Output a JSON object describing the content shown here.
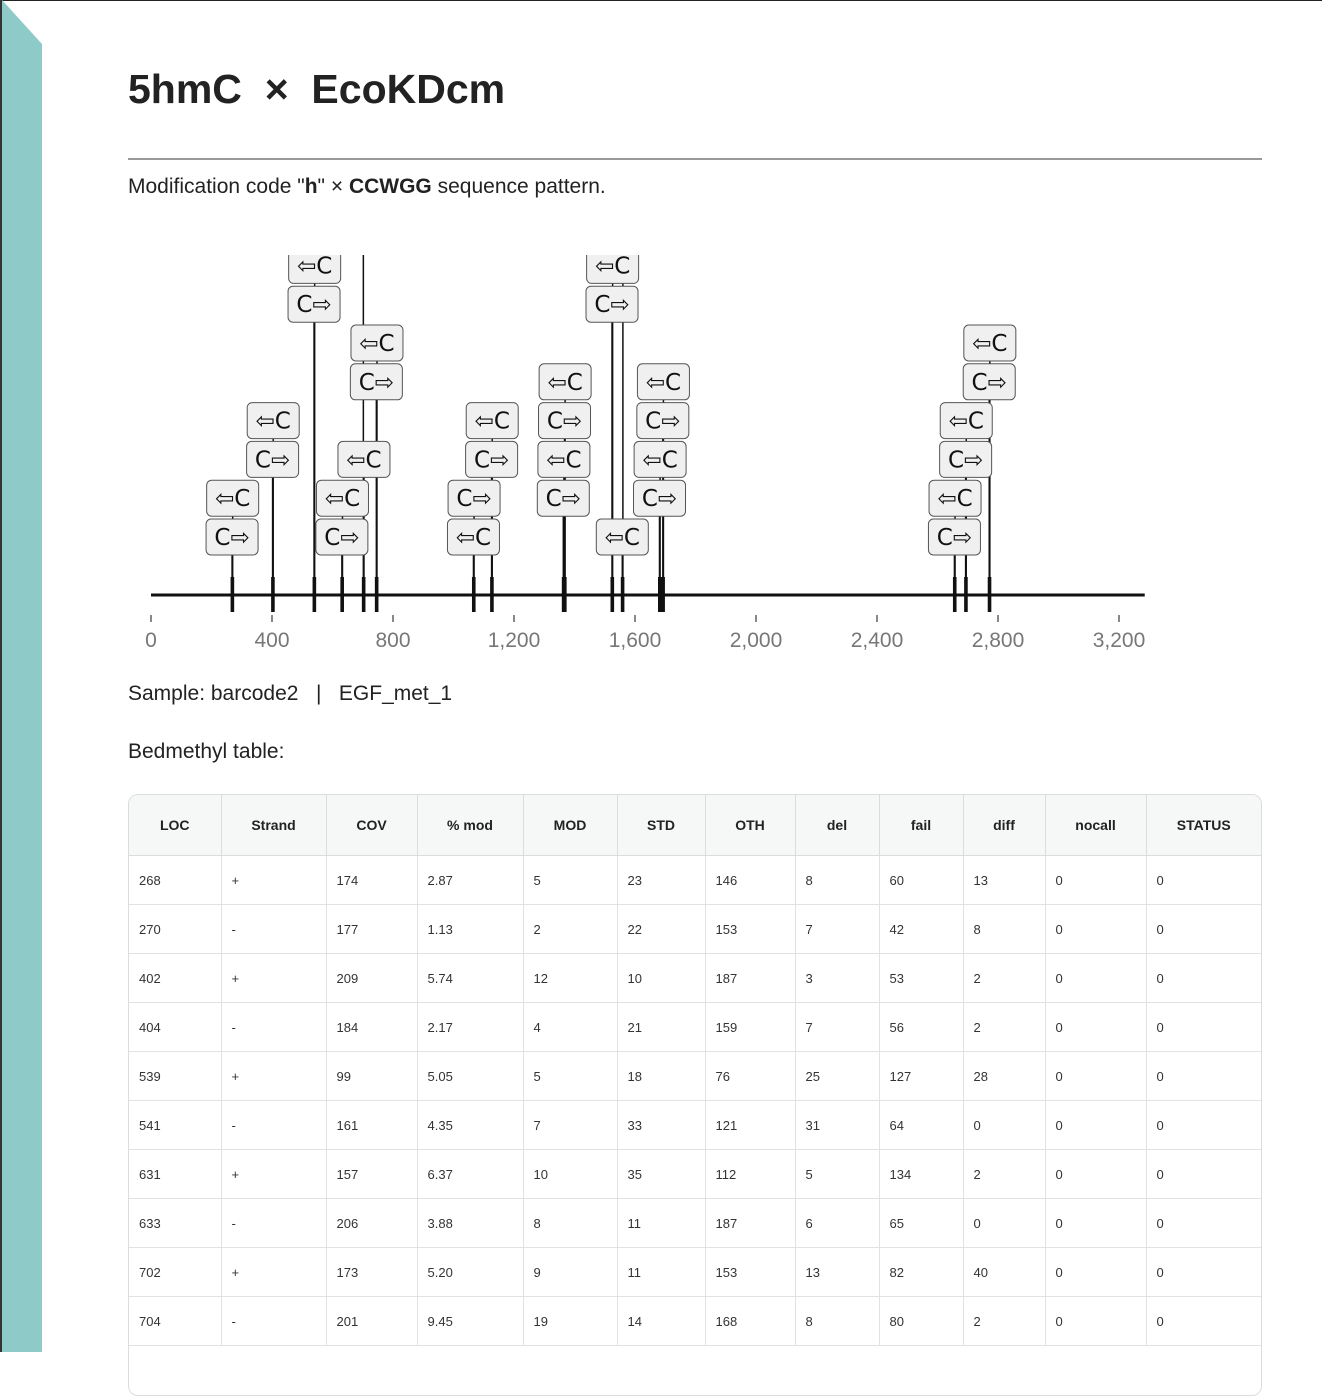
{
  "page": {
    "title": "5hmC  ×  EcoKDcm",
    "description": {
      "prefix": "Modification code \"",
      "code": "h",
      "middle": "\" × ",
      "pattern": "CCWGG",
      "suffix": " sequence pattern."
    },
    "sample_line": "Sample: barcode2   |   EGF_met_1",
    "table_caption": "Bedmethyl table:"
  },
  "colors": {
    "accent_band": "#8ecbc8",
    "label_fill": "#f0f0f0",
    "axis": "#111111",
    "tick_text": "#777777"
  },
  "chart_data": {
    "type": "scatter",
    "xlim": [
      0,
      3300
    ],
    "xticks": [
      0,
      400,
      800,
      1200,
      1600,
      2000,
      2400,
      2800,
      3200
    ],
    "xtick_labels": [
      "0",
      "400",
      "800",
      "1,200",
      "1,600",
      "2,000",
      "2,400",
      "2,800",
      "3,200"
    ],
    "label_forward": "C⇨",
    "label_reverse": "⇦C",
    "sites": [
      {
        "x": 268,
        "strand": "+",
        "level": 0
      },
      {
        "x": 270,
        "strand": "-",
        "level": 1
      },
      {
        "x": 402,
        "strand": "+",
        "level": 2
      },
      {
        "x": 404,
        "strand": "-",
        "level": 3
      },
      {
        "x": 539,
        "strand": "+",
        "level": 6
      },
      {
        "x": 541,
        "strand": "-",
        "level": 7
      },
      {
        "x": 631,
        "strand": "+",
        "level": 0
      },
      {
        "x": 633,
        "strand": "-",
        "level": 1
      },
      {
        "x": 702,
        "strand": "+",
        "level": 8
      },
      {
        "x": 704,
        "strand": "-",
        "level": 2
      },
      {
        "x": 745,
        "strand": "+",
        "level": 4
      },
      {
        "x": 747,
        "strand": "-",
        "level": 5
      },
      {
        "x": 1066,
        "strand": "-",
        "level": 0
      },
      {
        "x": 1068,
        "strand": "+",
        "level": 1
      },
      {
        "x": 1126,
        "strand": "+",
        "level": 2
      },
      {
        "x": 1128,
        "strand": "-",
        "level": 3
      },
      {
        "x": 1363,
        "strand": "+",
        "level": 1
      },
      {
        "x": 1365,
        "strand": "-",
        "level": 2
      },
      {
        "x": 1367,
        "strand": "+",
        "level": 3
      },
      {
        "x": 1369,
        "strand": "-",
        "level": 4
      },
      {
        "x": 1524,
        "strand": "+",
        "level": 6
      },
      {
        "x": 1526,
        "strand": "-",
        "level": 7
      },
      {
        "x": 1558,
        "strand": "-",
        "level": 0
      },
      {
        "x": 1560,
        "strand": "+",
        "level": 8
      },
      {
        "x": 1681,
        "strand": "+",
        "level": 1
      },
      {
        "x": 1683,
        "strand": "-",
        "level": 2
      },
      {
        "x": 1692,
        "strand": "+",
        "level": 3
      },
      {
        "x": 1694,
        "strand": "-",
        "level": 4
      },
      {
        "x": 2656,
        "strand": "+",
        "level": 0
      },
      {
        "x": 2658,
        "strand": "-",
        "level": 1
      },
      {
        "x": 2693,
        "strand": "+",
        "level": 2
      },
      {
        "x": 2695,
        "strand": "-",
        "level": 3
      },
      {
        "x": 2771,
        "strand": "+",
        "level": 4
      },
      {
        "x": 2773,
        "strand": "-",
        "level": 5
      }
    ]
  },
  "table": {
    "headers": [
      "LOC",
      "Strand",
      "COV",
      "% mod",
      "MOD",
      "STD",
      "OTH",
      "del",
      "fail",
      "diff",
      "nocall",
      "STATUS"
    ],
    "rows": [
      [
        "268",
        "+",
        "174",
        "2.87",
        "5",
        "23",
        "146",
        "8",
        "60",
        "13",
        "0",
        "0"
      ],
      [
        "270",
        "-",
        "177",
        "1.13",
        "2",
        "22",
        "153",
        "7",
        "42",
        "8",
        "0",
        "0"
      ],
      [
        "402",
        "+",
        "209",
        "5.74",
        "12",
        "10",
        "187",
        "3",
        "53",
        "2",
        "0",
        "0"
      ],
      [
        "404",
        "-",
        "184",
        "2.17",
        "4",
        "21",
        "159",
        "7",
        "56",
        "2",
        "0",
        "0"
      ],
      [
        "539",
        "+",
        "99",
        "5.05",
        "5",
        "18",
        "76",
        "25",
        "127",
        "28",
        "0",
        "0"
      ],
      [
        "541",
        "-",
        "161",
        "4.35",
        "7",
        "33",
        "121",
        "31",
        "64",
        "0",
        "0",
        "0"
      ],
      [
        "631",
        "+",
        "157",
        "6.37",
        "10",
        "35",
        "112",
        "5",
        "134",
        "2",
        "0",
        "0"
      ],
      [
        "633",
        "-",
        "206",
        "3.88",
        "8",
        "11",
        "187",
        "6",
        "65",
        "0",
        "0",
        "0"
      ],
      [
        "702",
        "+",
        "173",
        "5.20",
        "9",
        "11",
        "153",
        "13",
        "82",
        "40",
        "0",
        "0"
      ],
      [
        "704",
        "-",
        "201",
        "9.45",
        "19",
        "14",
        "168",
        "8",
        "80",
        "2",
        "0",
        "0"
      ]
    ]
  }
}
